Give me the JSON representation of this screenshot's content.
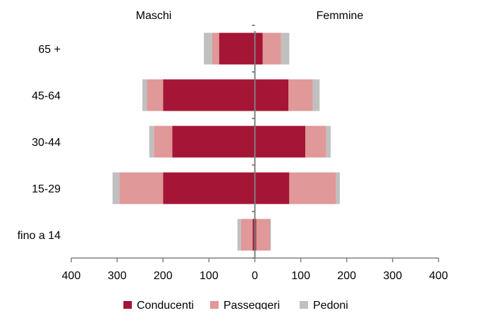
{
  "chart_data": {
    "type": "bar",
    "orientation": "horizontal-diverging",
    "side_labels": {
      "left": "Maschi",
      "right": "Femmine"
    },
    "categories": [
      "65 +",
      "45-64",
      "30-44",
      "15-29",
      "fino a 14"
    ],
    "xlim": [
      -400,
      400
    ],
    "x_ticks": [
      -400,
      -300,
      -200,
      -100,
      0,
      100,
      200,
      300,
      400
    ],
    "x_tick_labels": [
      "400",
      "300",
      "200",
      "100",
      "0",
      "100",
      "200",
      "300",
      "400"
    ],
    "grid": false,
    "legend_position": "bottom",
    "series": [
      {
        "name": "Conducenti",
        "color": "#a51535",
        "maschi": [
          78,
          200,
          180,
          200,
          5
        ],
        "femmine": [
          17,
          73,
          110,
          75,
          3
        ]
      },
      {
        "name": "Passeggeri",
        "color": "#e09898",
        "maschi": [
          15,
          35,
          40,
          95,
          25
        ],
        "femmine": [
          40,
          53,
          45,
          102,
          30
        ]
      },
      {
        "name": "Pedoni",
        "color": "#c0c0c0",
        "maschi": [
          18,
          10,
          10,
          15,
          8
        ],
        "femmine": [
          18,
          15,
          10,
          8,
          2
        ]
      }
    ]
  }
}
